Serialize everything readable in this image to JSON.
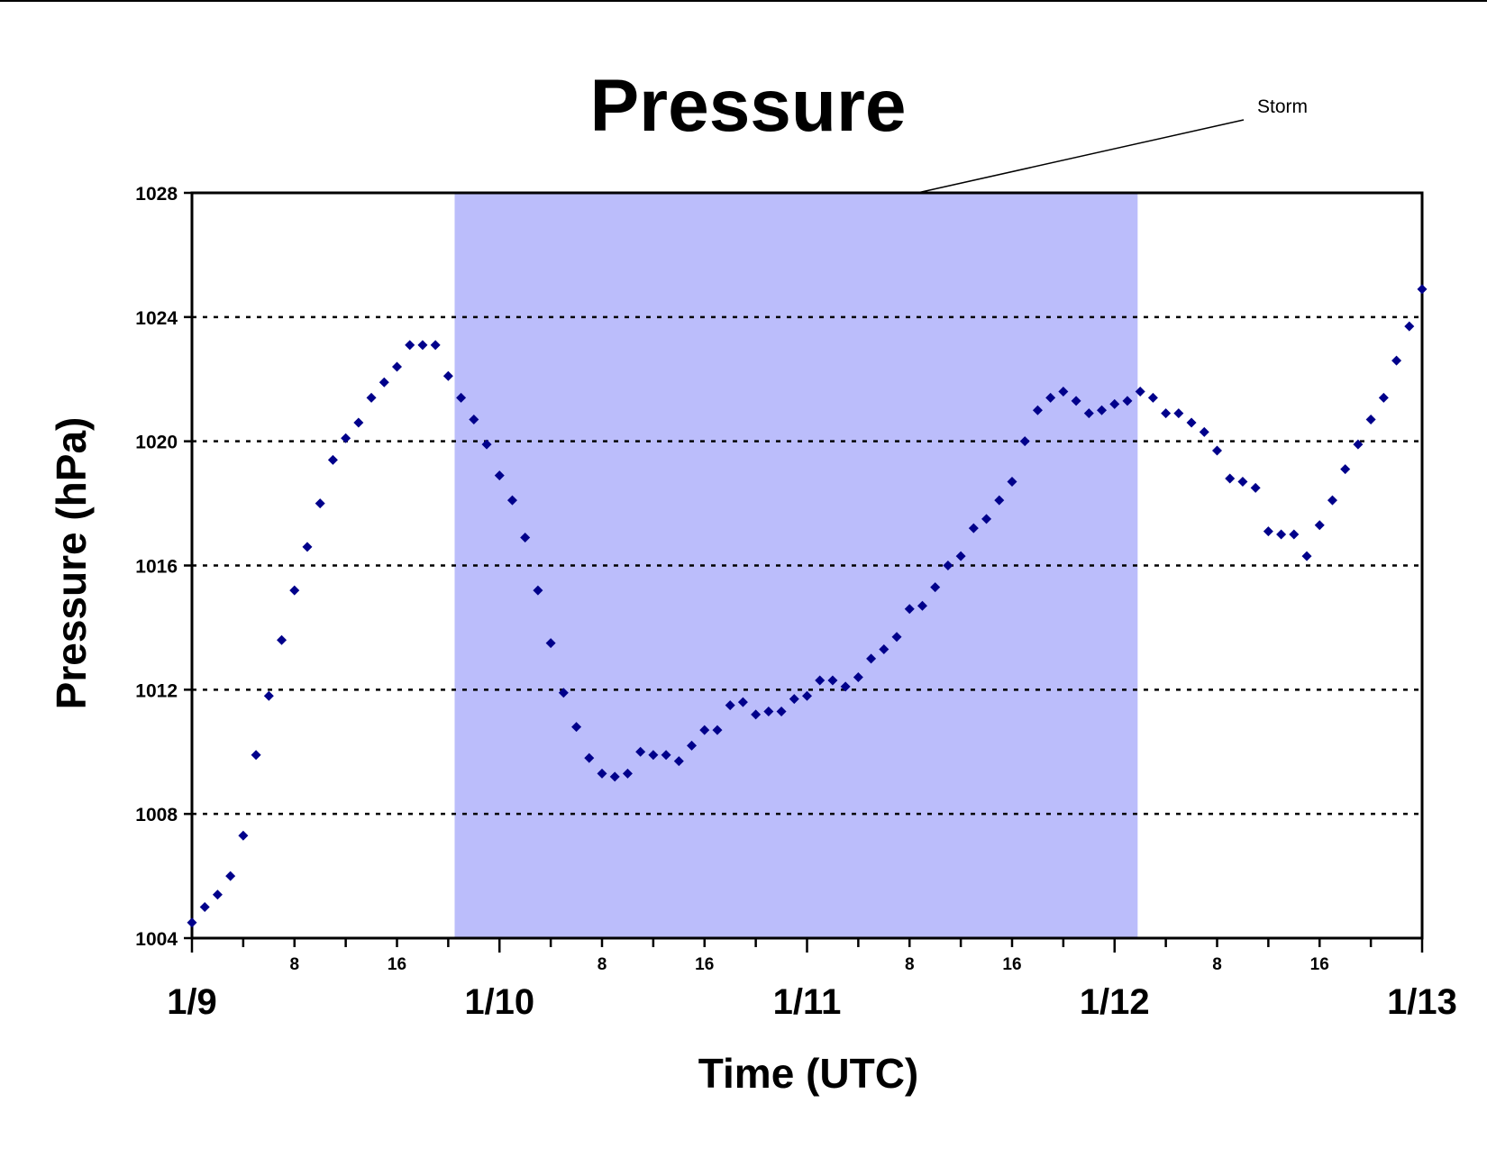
{
  "chart_data": {
    "type": "scatter",
    "title": "Pressure",
    "xlabel": "Time (UTC)",
    "ylabel": "Pressure (hPa)",
    "x_unit": "hours after 1/9 00 UTC",
    "xlim": [
      0,
      96
    ],
    "ylim": [
      1004,
      1028
    ],
    "y_ticks": [
      "1004",
      "1008",
      "1012",
      "1016",
      "1020",
      "1024",
      "1028"
    ],
    "x_major_ticks": [
      {
        "hour": 0,
        "label": "1/9"
      },
      {
        "hour": 24,
        "label": "1/10"
      },
      {
        "hour": 48,
        "label": "1/11"
      },
      {
        "hour": 72,
        "label": "1/12"
      },
      {
        "hour": 96,
        "label": "1/13"
      }
    ],
    "x_minor_labels": [
      {
        "hour": 8,
        "label": "8"
      },
      {
        "hour": 16,
        "label": "16"
      },
      {
        "hour": 32,
        "label": "8"
      },
      {
        "hour": 40,
        "label": "16"
      },
      {
        "hour": 56,
        "label": "8"
      },
      {
        "hour": 64,
        "label": "16"
      },
      {
        "hour": 80,
        "label": "8"
      },
      {
        "hour": 88,
        "label": "16"
      }
    ],
    "grid": "horizontal dotted",
    "marker_color": "#00008b",
    "storm_shade": {
      "label": "Storm",
      "start_hour": 20.5,
      "end_hour": 73.8,
      "color": "#bbbdfb"
    },
    "series": [
      {
        "name": "",
        "points": [
          [
            0,
            1004.5
          ],
          [
            1,
            1005.0
          ],
          [
            2,
            1005.4
          ],
          [
            3,
            1006.0
          ],
          [
            4,
            1007.3
          ],
          [
            5,
            1009.9
          ],
          [
            6,
            1011.8
          ],
          [
            7,
            1013.6
          ],
          [
            8,
            1015.2
          ],
          [
            9,
            1016.6
          ],
          [
            10,
            1018.0
          ],
          [
            11,
            1019.4
          ],
          [
            12,
            1020.1
          ],
          [
            13,
            1020.6
          ],
          [
            14,
            1021.4
          ],
          [
            15,
            1021.9
          ],
          [
            16,
            1022.4
          ],
          [
            17,
            1023.1
          ],
          [
            18,
            1023.1
          ],
          [
            19,
            1023.1
          ],
          [
            20,
            1022.1
          ],
          [
            21,
            1021.4
          ],
          [
            22,
            1020.7
          ],
          [
            23,
            1019.9
          ],
          [
            24,
            1018.9
          ],
          [
            25,
            1018.1
          ],
          [
            26,
            1016.9
          ],
          [
            27,
            1015.2
          ],
          [
            28,
            1013.5
          ],
          [
            29,
            1011.9
          ],
          [
            30,
            1010.8
          ],
          [
            31,
            1009.8
          ],
          [
            32,
            1009.3
          ],
          [
            33,
            1009.2
          ],
          [
            34,
            1009.3
          ],
          [
            35,
            1010.0
          ],
          [
            36,
            1009.9
          ],
          [
            37,
            1009.9
          ],
          [
            38,
            1009.7
          ],
          [
            39,
            1010.2
          ],
          [
            40,
            1010.7
          ],
          [
            41,
            1010.7
          ],
          [
            42,
            1011.5
          ],
          [
            43,
            1011.6
          ],
          [
            44,
            1011.2
          ],
          [
            45,
            1011.3
          ],
          [
            46,
            1011.3
          ],
          [
            47,
            1011.7
          ],
          [
            48,
            1011.8
          ],
          [
            49,
            1012.3
          ],
          [
            50,
            1012.3
          ],
          [
            51,
            1012.1
          ],
          [
            52,
            1012.4
          ],
          [
            53,
            1013.0
          ],
          [
            54,
            1013.3
          ],
          [
            55,
            1013.7
          ],
          [
            56,
            1014.6
          ],
          [
            57,
            1014.7
          ],
          [
            58,
            1015.3
          ],
          [
            59,
            1016.0
          ],
          [
            60,
            1016.3
          ],
          [
            61,
            1017.2
          ],
          [
            62,
            1017.5
          ],
          [
            63,
            1018.1
          ],
          [
            64,
            1018.7
          ],
          [
            65,
            1020.0
          ],
          [
            66,
            1021.0
          ],
          [
            67,
            1021.4
          ],
          [
            68,
            1021.6
          ],
          [
            69,
            1021.3
          ],
          [
            70,
            1020.9
          ],
          [
            71,
            1021.0
          ],
          [
            72,
            1021.2
          ],
          [
            73,
            1021.3
          ],
          [
            74,
            1021.6
          ],
          [
            75,
            1021.4
          ],
          [
            76,
            1020.9
          ],
          [
            77,
            1020.9
          ],
          [
            78,
            1020.6
          ],
          [
            79,
            1020.3
          ],
          [
            80,
            1019.7
          ],
          [
            81,
            1018.8
          ],
          [
            82,
            1018.7
          ],
          [
            83,
            1018.5
          ],
          [
            84,
            1017.1
          ],
          [
            85,
            1017.0
          ],
          [
            86,
            1017.0
          ],
          [
            87,
            1016.3
          ],
          [
            88,
            1017.3
          ],
          [
            89,
            1018.1
          ],
          [
            90,
            1019.1
          ],
          [
            91,
            1019.9
          ],
          [
            92,
            1020.7
          ],
          [
            93,
            1021.4
          ],
          [
            94,
            1022.6
          ],
          [
            95,
            1023.7
          ],
          [
            96,
            1024.9
          ]
        ]
      }
    ]
  }
}
